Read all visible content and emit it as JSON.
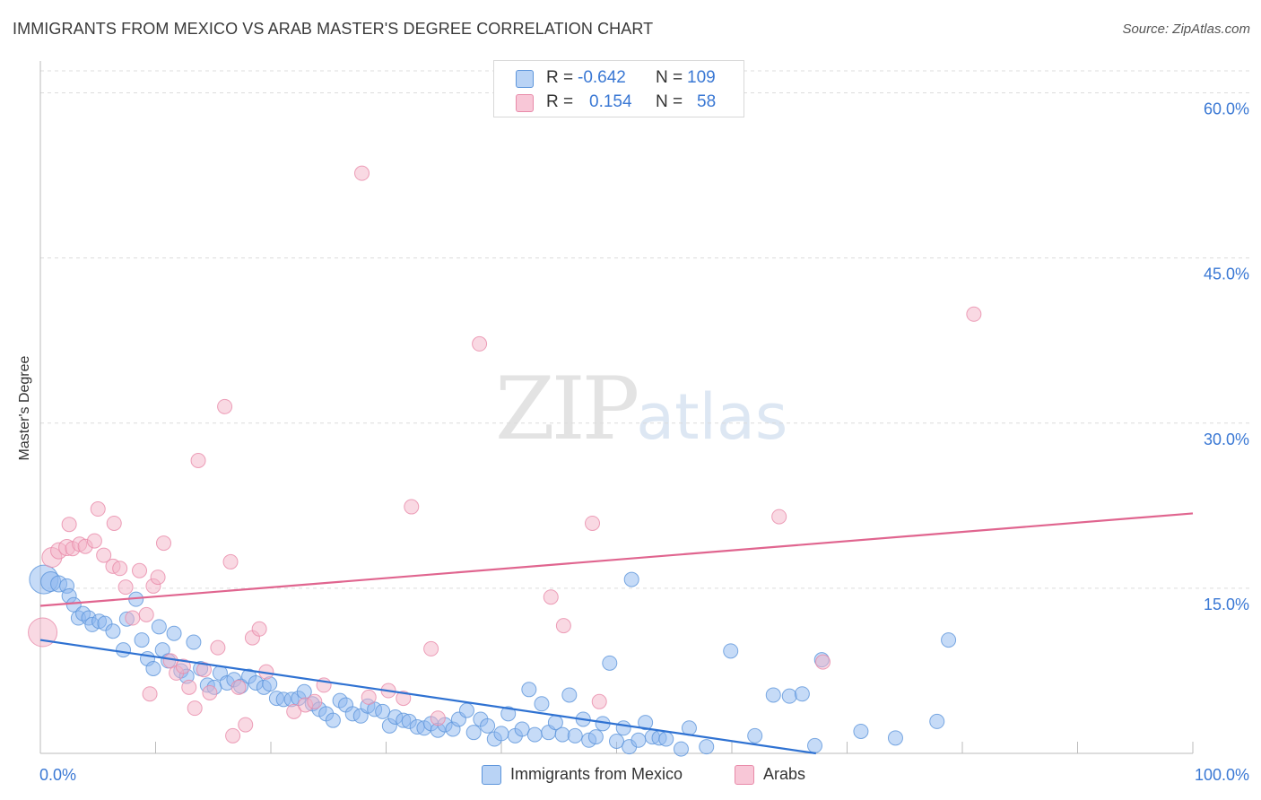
{
  "title": "IMMIGRANTS FROM MEXICO VS ARAB MASTER'S DEGREE CORRELATION CHART",
  "source": "Source: ZipAtlas.com",
  "watermark": {
    "zip": "ZIP",
    "atlas": "atlas"
  },
  "stats": [
    {
      "r_label": "R =",
      "r_value": "-0.642",
      "n_label": "N =",
      "n_value": "109"
    },
    {
      "r_label": "R =",
      "r_value": "0.154",
      "n_label": "N =",
      "n_value": "58"
    }
  ],
  "legend": [
    {
      "label": "Immigrants from Mexico"
    },
    {
      "label": "Arabs"
    }
  ],
  "chart_data": {
    "type": "scatter",
    "title": "IMMIGRANTS FROM MEXICO VS ARAB MASTER'S DEGREE CORRELATION CHART",
    "xlabel": "",
    "ylabel": "Master's Degree",
    "xlim": [
      0,
      100
    ],
    "ylim": [
      0,
      63
    ],
    "x_tick_labels": [
      "0.0%",
      "100.0%"
    ],
    "y_ticks": [
      15,
      30,
      45,
      60
    ],
    "y_tick_labels": [
      "15.0%",
      "30.0%",
      "45.0%",
      "60.0%"
    ],
    "grid": true,
    "series": [
      {
        "name": "Immigrants from Mexico",
        "color": "#8db8ef",
        "stroke": "#5d95db",
        "trend_color": "#2f72d2",
        "trend": {
          "x": [
            0,
            67.3
          ],
          "y": [
            10.3,
            0
          ]
        },
        "points": [
          [
            0.3,
            15.8,
            16
          ],
          [
            0.9,
            15.6,
            11
          ],
          [
            1.6,
            15.4,
            9
          ],
          [
            2.3,
            15.2,
            8
          ],
          [
            2.5,
            14.3,
            8
          ],
          [
            2.9,
            13.5,
            8
          ],
          [
            3.3,
            12.3,
            8
          ],
          [
            3.7,
            12.7,
            8
          ],
          [
            4.2,
            12.3,
            8
          ],
          [
            4.5,
            11.7,
            8
          ],
          [
            5.1,
            12.0,
            8
          ],
          [
            5.6,
            11.8,
            8
          ],
          [
            6.3,
            11.1,
            8
          ],
          [
            7.2,
            9.4,
            8
          ],
          [
            7.5,
            12.2,
            8
          ],
          [
            8.3,
            14.0,
            8
          ],
          [
            8.8,
            10.3,
            8
          ],
          [
            9.3,
            8.6,
            8
          ],
          [
            9.8,
            7.7,
            8
          ],
          [
            10.3,
            11.5,
            8
          ],
          [
            10.6,
            9.4,
            8
          ],
          [
            11.1,
            8.4,
            8
          ],
          [
            11.6,
            10.9,
            8
          ],
          [
            12.2,
            7.5,
            8
          ],
          [
            12.7,
            7.0,
            8
          ],
          [
            13.3,
            10.1,
            8
          ],
          [
            13.9,
            7.7,
            8
          ],
          [
            14.5,
            6.2,
            8
          ],
          [
            15.1,
            6.0,
            8
          ],
          [
            15.6,
            7.3,
            8
          ],
          [
            16.2,
            6.4,
            8
          ],
          [
            16.8,
            6.7,
            8
          ],
          [
            17.4,
            6.1,
            8
          ],
          [
            18.1,
            7.0,
            8
          ],
          [
            18.7,
            6.4,
            8
          ],
          [
            19.4,
            6.0,
            8
          ],
          [
            19.9,
            6.3,
            8
          ],
          [
            20.5,
            5.0,
            8
          ],
          [
            21.1,
            4.9,
            8
          ],
          [
            21.8,
            4.9,
            8
          ],
          [
            22.4,
            5.0,
            8
          ],
          [
            22.9,
            5.6,
            8
          ],
          [
            23.6,
            4.5,
            8
          ],
          [
            24.2,
            4.0,
            8
          ],
          [
            24.8,
            3.6,
            8
          ],
          [
            25.4,
            3.0,
            8
          ],
          [
            26.0,
            4.8,
            8
          ],
          [
            26.5,
            4.4,
            8
          ],
          [
            27.1,
            3.6,
            8
          ],
          [
            27.8,
            3.4,
            8
          ],
          [
            28.4,
            4.3,
            8
          ],
          [
            29.0,
            4.0,
            8
          ],
          [
            29.7,
            3.8,
            8
          ],
          [
            30.3,
            2.5,
            8
          ],
          [
            30.8,
            3.3,
            8
          ],
          [
            31.5,
            3.0,
            8
          ],
          [
            32.0,
            2.9,
            8
          ],
          [
            32.7,
            2.4,
            8
          ],
          [
            33.3,
            2.3,
            8
          ],
          [
            33.9,
            2.7,
            8
          ],
          [
            34.5,
            2.1,
            8
          ],
          [
            35.1,
            2.6,
            8
          ],
          [
            35.8,
            2.2,
            8
          ],
          [
            36.3,
            3.1,
            8
          ],
          [
            37.0,
            3.9,
            8
          ],
          [
            37.6,
            1.9,
            8
          ],
          [
            38.2,
            3.1,
            8
          ],
          [
            38.8,
            2.5,
            8
          ],
          [
            39.4,
            1.3,
            8
          ],
          [
            40.0,
            1.8,
            8
          ],
          [
            40.6,
            3.6,
            8
          ],
          [
            41.2,
            1.6,
            8
          ],
          [
            41.8,
            2.2,
            8
          ],
          [
            42.4,
            5.8,
            8
          ],
          [
            42.9,
            1.7,
            8
          ],
          [
            43.5,
            4.5,
            8
          ],
          [
            44.1,
            1.9,
            8
          ],
          [
            44.7,
            2.8,
            8
          ],
          [
            45.3,
            1.7,
            8
          ],
          [
            45.9,
            5.3,
            8
          ],
          [
            46.4,
            1.6,
            8
          ],
          [
            47.1,
            3.1,
            8
          ],
          [
            47.6,
            1.2,
            8
          ],
          [
            48.2,
            1.5,
            8
          ],
          [
            48.8,
            2.7,
            8
          ],
          [
            49.4,
            8.2,
            8
          ],
          [
            50.0,
            1.1,
            8
          ],
          [
            50.6,
            2.3,
            8
          ],
          [
            51.1,
            0.6,
            8
          ],
          [
            51.3,
            15.8,
            8
          ],
          [
            51.9,
            1.2,
            8
          ],
          [
            52.5,
            2.8,
            8
          ],
          [
            53.1,
            1.5,
            8
          ],
          [
            53.7,
            1.4,
            8
          ],
          [
            54.3,
            1.3,
            8
          ],
          [
            56.3,
            2.3,
            8
          ],
          [
            55.6,
            0.4,
            8
          ],
          [
            57.8,
            0.6,
            8
          ],
          [
            59.9,
            9.3,
            8
          ],
          [
            65.0,
            5.2,
            8
          ],
          [
            66.1,
            5.4,
            8
          ],
          [
            67.2,
            0.7,
            8
          ],
          [
            62.0,
            1.6,
            8
          ],
          [
            67.8,
            8.5,
            8
          ],
          [
            71.2,
            2.0,
            8
          ],
          [
            74.2,
            1.4,
            8
          ],
          [
            77.8,
            2.9,
            8
          ],
          [
            78.8,
            10.3,
            8
          ],
          [
            63.6,
            5.3,
            8
          ]
        ]
      },
      {
        "name": "Arabs",
        "color": "#f4b3c8",
        "stroke": "#e88aa9",
        "trend_color": "#e0658f",
        "trend": {
          "x": [
            0,
            100
          ],
          "y": [
            13.4,
            21.8
          ]
        },
        "points": [
          [
            0.2,
            11.0,
            16
          ],
          [
            1.0,
            17.8,
            11
          ],
          [
            1.6,
            18.4,
            9
          ],
          [
            2.3,
            18.7,
            9
          ],
          [
            2.8,
            18.6,
            8
          ],
          [
            3.4,
            19.0,
            8
          ],
          [
            3.9,
            18.8,
            8
          ],
          [
            4.7,
            19.3,
            8
          ],
          [
            5.5,
            18.0,
            8
          ],
          [
            6.3,
            17.0,
            8
          ],
          [
            6.9,
            16.8,
            8
          ],
          [
            7.4,
            15.1,
            8
          ],
          [
            8.0,
            12.3,
            8
          ],
          [
            8.6,
            16.6,
            8
          ],
          [
            9.2,
            12.6,
            8
          ],
          [
            9.8,
            15.2,
            8
          ],
          [
            10.2,
            16.0,
            8
          ],
          [
            10.7,
            19.1,
            8
          ],
          [
            11.3,
            8.4,
            8
          ],
          [
            11.8,
            7.3,
            8
          ],
          [
            12.4,
            7.9,
            8
          ],
          [
            12.9,
            6.0,
            8
          ],
          [
            13.4,
            4.1,
            8
          ],
          [
            13.7,
            26.6,
            8
          ],
          [
            14.2,
            7.6,
            8
          ],
          [
            14.7,
            5.5,
            8
          ],
          [
            15.4,
            9.6,
            8
          ],
          [
            16.0,
            31.5,
            8
          ],
          [
            16.5,
            17.4,
            8
          ],
          [
            17.2,
            6.0,
            8
          ],
          [
            17.8,
            2.6,
            8
          ],
          [
            18.4,
            10.5,
            8
          ],
          [
            19.0,
            11.3,
            8
          ],
          [
            19.6,
            7.4,
            8
          ],
          [
            22.0,
            3.8,
            8
          ],
          [
            23.0,
            4.4,
            8
          ],
          [
            23.8,
            4.7,
            8
          ],
          [
            24.6,
            6.2,
            8
          ],
          [
            27.9,
            52.7,
            8
          ],
          [
            28.5,
            5.1,
            8
          ],
          [
            30.2,
            5.7,
            8
          ],
          [
            31.5,
            5.0,
            8
          ],
          [
            32.2,
            22.4,
            8
          ],
          [
            33.9,
            9.5,
            8
          ],
          [
            34.5,
            3.2,
            8
          ],
          [
            38.1,
            37.2,
            8
          ],
          [
            44.3,
            14.2,
            8
          ],
          [
            45.4,
            11.6,
            8
          ],
          [
            47.9,
            20.9,
            8
          ],
          [
            48.5,
            4.7,
            8
          ],
          [
            64.1,
            21.5,
            8
          ],
          [
            67.9,
            8.3,
            8
          ],
          [
            81.0,
            39.9,
            8
          ],
          [
            5.0,
            22.2,
            8
          ],
          [
            6.4,
            20.9,
            8
          ],
          [
            2.5,
            20.8,
            8
          ],
          [
            9.5,
            5.4,
            8
          ],
          [
            16.7,
            1.6,
            8
          ]
        ]
      }
    ]
  }
}
